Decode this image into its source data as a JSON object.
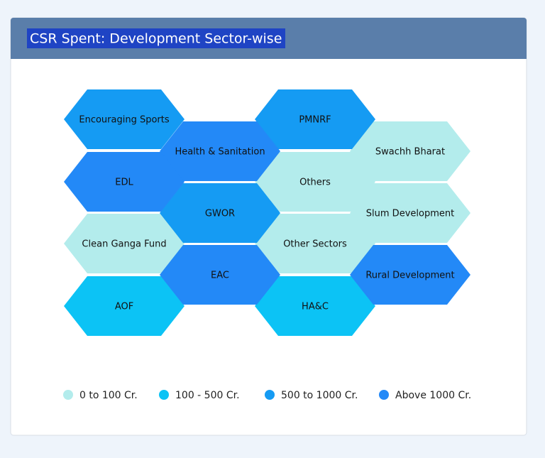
{
  "chart_data": {
    "type": "tilemap",
    "title": "CSR Spent: Development Sector-wise",
    "series": [
      {
        "name": "0 to 100 Cr.",
        "color": "#b3ecec",
        "tiles": [
          "Swachh Bharat",
          "Others",
          "Slum Development",
          "Clean Ganga Fund",
          "Other Sectors"
        ]
      },
      {
        "name": "100 - 500 Cr.",
        "color": "#0cc3f5",
        "tiles": [
          "AOF",
          "HA&C"
        ]
      },
      {
        "name": "500 to 1000 Cr.",
        "color": "#159bf3",
        "tiles": [
          "Encouraging Sports",
          "PMNRF",
          "GWOR"
        ]
      },
      {
        "name": "Above 1000 Cr.",
        "color": "#2389f7",
        "tiles": [
          "Health & Sanitation",
          "EDL",
          "EAC",
          "Rural Development"
        ]
      }
    ]
  }
}
